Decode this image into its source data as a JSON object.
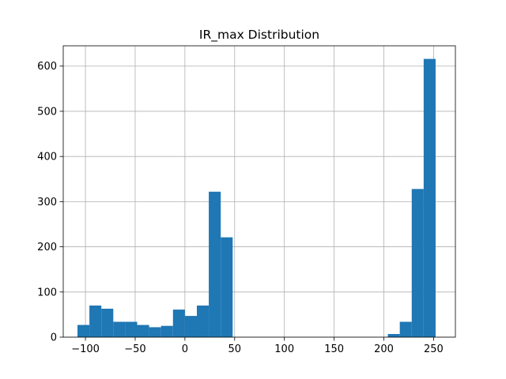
{
  "chart_data": {
    "type": "bar",
    "title": "IR_max Distribution",
    "xlabel": "",
    "ylabel": "",
    "xlim": [
      -122.3,
      271.9
    ],
    "ylim": [
      0,
      645
    ],
    "grid": true,
    "bar_color": "#1f77b4",
    "x_ticks": [
      -100,
      -50,
      0,
      50,
      100,
      150,
      200,
      250
    ],
    "y_ticks": [
      0,
      100,
      200,
      300,
      400,
      500,
      600
    ],
    "bins": [
      {
        "x0": -108.0,
        "x1": -96.0,
        "value": 27
      },
      {
        "x0": -96.0,
        "x1": -84.0,
        "value": 70
      },
      {
        "x0": -84.0,
        "x1": -72.0,
        "value": 63
      },
      {
        "x0": -72.0,
        "x1": -60.0,
        "value": 34
      },
      {
        "x0": -60.0,
        "x1": -48.0,
        "value": 34
      },
      {
        "x0": -48.0,
        "x1": -36.0,
        "value": 27
      },
      {
        "x0": -36.0,
        "x1": -24.0,
        "value": 22
      },
      {
        "x0": -24.0,
        "x1": -12.0,
        "value": 25
      },
      {
        "x0": -12.0,
        "x1": 0.0,
        "value": 61
      },
      {
        "x0": 0.0,
        "x1": 12.0,
        "value": 47
      },
      {
        "x0": 12.0,
        "x1": 24.0,
        "value": 70
      },
      {
        "x0": 24.0,
        "x1": 36.0,
        "value": 322
      },
      {
        "x0": 36.0,
        "x1": 48.0,
        "value": 221
      },
      {
        "x0": 48.0,
        "x1": 60.0,
        "value": 0
      },
      {
        "x0": 60.0,
        "x1": 72.0,
        "value": 0
      },
      {
        "x0": 72.0,
        "x1": 84.0,
        "value": 0
      },
      {
        "x0": 84.0,
        "x1": 96.0,
        "value": 0
      },
      {
        "x0": 96.0,
        "x1": 108.0,
        "value": 0
      },
      {
        "x0": 108.0,
        "x1": 120.0,
        "value": 0
      },
      {
        "x0": 120.0,
        "x1": 132.0,
        "value": 0
      },
      {
        "x0": 132.0,
        "x1": 144.0,
        "value": 0
      },
      {
        "x0": 144.0,
        "x1": 156.0,
        "value": 0
      },
      {
        "x0": 156.0,
        "x1": 168.0,
        "value": 0
      },
      {
        "x0": 168.0,
        "x1": 180.0,
        "value": 0
      },
      {
        "x0": 180.0,
        "x1": 192.0,
        "value": 0
      },
      {
        "x0": 192.0,
        "x1": 204.0,
        "value": 0
      },
      {
        "x0": 204.0,
        "x1": 216.0,
        "value": 7
      },
      {
        "x0": 216.0,
        "x1": 228.0,
        "value": 34
      },
      {
        "x0": 228.0,
        "x1": 240.0,
        "value": 328
      },
      {
        "x0": 240.0,
        "x1": 252.0,
        "value": 616
      }
    ]
  }
}
